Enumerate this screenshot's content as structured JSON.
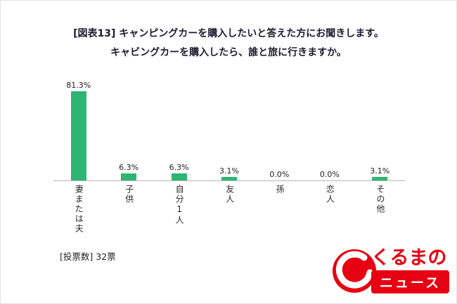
{
  "chart_data": {
    "type": "bar",
    "title_line1": "[図表13]  キャンピングカーを購入したいと答えた方にお聞きします。",
    "title_line2": "キャビングカーを購入したら、誰と旅に行きますか。",
    "categories": [
      "妻または夫",
      "子供",
      "自分1人",
      "友人",
      "孫",
      "恋人",
      "その他"
    ],
    "values": [
      81.3,
      6.3,
      6.3,
      3.1,
      0.0,
      0.0,
      3.1
    ],
    "value_labels": [
      "81.3%",
      "6.3%",
      "6.3%",
      "3.1%",
      "0.0%",
      "0.0%",
      "3.1%"
    ],
    "bar_color": "#2eb573",
    "ylabel": "",
    "xlabel": "",
    "ylim": [
      0,
      90
    ],
    "grid": false,
    "legend": "none"
  },
  "footer": {
    "votes_label": "[投票数] 32票"
  },
  "logo": {
    "text_red": "くるまの",
    "text_badge": "ニュース",
    "color": "#e60012"
  }
}
